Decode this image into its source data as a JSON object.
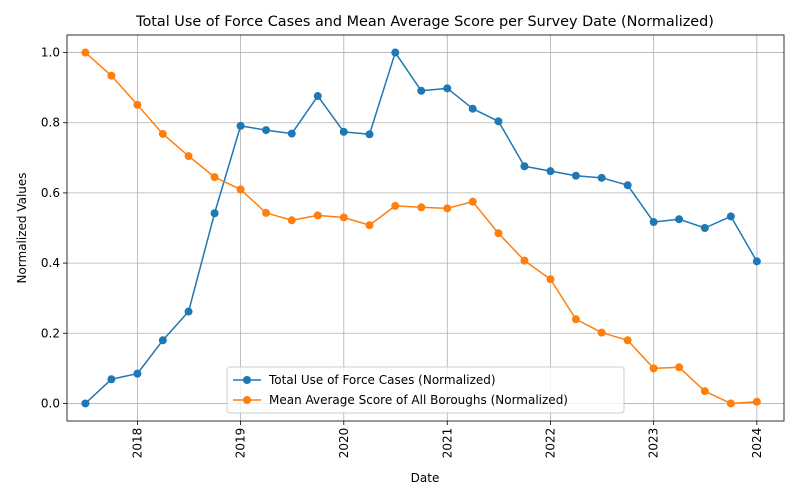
{
  "chart_data": {
    "type": "line",
    "title": "Total Use of Force Cases and Mean Average Score per Survey Date (Normalized)",
    "xlabel": "Date",
    "ylabel": "Normalized Values",
    "x_tick_labels": [
      "2018",
      "2019",
      "2020",
      "2021",
      "2022",
      "2023",
      "2024"
    ],
    "y_tick_labels": [
      "0.0",
      "0.2",
      "0.4",
      "0.6",
      "0.8",
      "1.0"
    ],
    "y_ticks": [
      0.0,
      0.2,
      0.4,
      0.6,
      0.8,
      1.0
    ],
    "ylim": [
      -0.05,
      1.05
    ],
    "xlim": [
      "2017-04-27",
      "2024-04-06"
    ],
    "grid": true,
    "legend_position": "lower center",
    "x": [
      "2017-07-01",
      "2017-10-01",
      "2018-01-01",
      "2018-04-01",
      "2018-07-01",
      "2018-10-01",
      "2019-01-01",
      "2019-04-01",
      "2019-07-01",
      "2019-10-01",
      "2020-01-01",
      "2020-04-01",
      "2020-07-01",
      "2020-10-01",
      "2021-01-01",
      "2021-04-01",
      "2021-07-01",
      "2021-10-01",
      "2022-01-01",
      "2022-04-01",
      "2022-07-01",
      "2022-10-01",
      "2023-01-01",
      "2023-04-01",
      "2023-07-01",
      "2023-10-01",
      "2024-01-01"
    ],
    "series": [
      {
        "name": "Total Use of Force Cases (Normalized)",
        "color": "#1f77b4",
        "values": [
          0.0,
          0.069,
          0.085,
          0.18,
          0.262,
          0.542,
          0.791,
          0.779,
          0.769,
          0.876,
          0.774,
          0.767,
          1.0,
          0.891,
          0.898,
          0.84,
          0.804,
          0.676,
          0.662,
          0.649,
          0.643,
          0.622,
          0.517,
          0.525,
          0.5,
          0.533,
          0.405
        ]
      },
      {
        "name": "Mean Average Score of All Boroughs (Normalized)",
        "color": "#ff7f0e",
        "values": [
          1.0,
          0.934,
          0.851,
          0.768,
          0.705,
          0.645,
          0.61,
          0.543,
          0.522,
          0.536,
          0.53,
          0.508,
          0.563,
          0.559,
          0.556,
          0.575,
          0.485,
          0.407,
          0.354,
          0.24,
          0.202,
          0.18,
          0.1,
          0.103,
          0.035,
          0.0,
          0.005
        ]
      }
    ]
  }
}
